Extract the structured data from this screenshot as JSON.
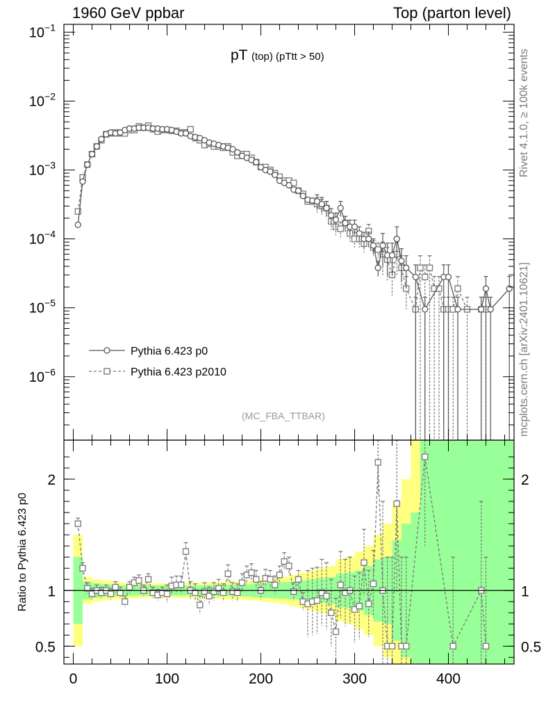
{
  "header": {
    "left": "1960 GeV ppbar",
    "right": "Top (parton level)"
  },
  "side": {
    "rivet": "Rivet 4.1.0, ≥ 100k events",
    "mcplots": "mcplots.cern.ch [arXiv:2401.10621]"
  },
  "plot_title": {
    "main": "pT",
    "sub": "(top) (pTtt > 50)"
  },
  "analysis_label": "(MC_FBA_TTBAR)",
  "colors": {
    "series1": "#555555",
    "series2": "#777777",
    "band_inner": "#99ff99",
    "band_outer": "#ffff80",
    "axis": "#000000"
  },
  "chart_data": [
    {
      "type": "line",
      "panel": "main",
      "title": "pT (top) (pTtt > 50)",
      "xlabel": "",
      "ylabel": "",
      "xlim": [
        -10,
        470
      ],
      "ylim": [
        1.2e-07,
        0.13
      ],
      "yscale": "log",
      "yticks": [
        0.1,
        0.01,
        0.001,
        0.0001,
        1e-05,
        1e-06
      ],
      "ytick_labels": [
        {
          "base": "10",
          "exp": "−1"
        },
        {
          "base": "10",
          "exp": "−2"
        },
        {
          "base": "10",
          "exp": "−3"
        },
        {
          "base": "10",
          "exp": "−4"
        },
        {
          "base": "10",
          "exp": "−5"
        },
        {
          "base": "10",
          "exp": "−6"
        }
      ],
      "legend": [
        "Pythia 6.423 p0",
        "Pythia 6.423 p2010"
      ],
      "legend_position": "bottom-left",
      "series": [
        {
          "name": "Pythia 6.423 p0",
          "style": "solid-circle",
          "x": [
            5,
            10,
            15,
            20,
            25,
            30,
            35,
            40,
            45,
            50,
            55,
            60,
            65,
            70,
            75,
            80,
            85,
            90,
            95,
            100,
            105,
            110,
            115,
            120,
            125,
            130,
            135,
            140,
            145,
            150,
            155,
            160,
            165,
            170,
            175,
            180,
            185,
            190,
            195,
            200,
            205,
            210,
            215,
            220,
            225,
            230,
            235,
            240,
            245,
            250,
            255,
            260,
            265,
            270,
            275,
            280,
            285,
            290,
            295,
            300,
            305,
            310,
            315,
            320,
            325,
            330,
            335,
            340,
            345,
            350,
            355,
            365,
            375,
            395,
            400,
            410,
            435,
            440,
            445,
            465
          ],
          "y": [
            0.00016,
            0.00068,
            0.0012,
            0.0017,
            0.0022,
            0.0028,
            0.0033,
            0.0035,
            0.0034,
            0.0035,
            0.0038,
            0.004,
            0.004,
            0.0041,
            0.0041,
            0.0041,
            0.004,
            0.004,
            0.0039,
            0.0039,
            0.0038,
            0.0036,
            0.0034,
            0.0034,
            0.0031,
            0.003,
            0.0029,
            0.0027,
            0.0025,
            0.0024,
            0.0023,
            0.0022,
            0.0021,
            0.002,
            0.0018,
            0.0016,
            0.0015,
            0.0014,
            0.0013,
            0.0011,
            0.001,
            0.00095,
            0.00085,
            0.0007,
            0.00065,
            0.0006,
            0.00052,
            0.0005,
            0.00042,
            0.00037,
            0.00036,
            0.00035,
            0.00032,
            0.00028,
            0.00022,
            0.00019,
            0.00028,
            0.00017,
            0.00015,
            0.00015,
            0.00012,
            0.0001,
            0.0001,
            8e-05,
            3.8e-05,
            8e-05,
            5.8e-05,
            5.8e-05,
            0.0001,
            4.8e-05,
            3.8e-05,
            2.8e-05,
            9.5e-06,
            2.8e-05,
            2.8e-05,
            9.5e-06,
            9.5e-06,
            1.9e-05,
            9.5e-06,
            1.9e-05
          ]
        },
        {
          "name": "Pythia 6.423 p2010",
          "style": "dashed-square",
          "x": [
            5,
            10,
            15,
            20,
            25,
            30,
            35,
            40,
            45,
            50,
            55,
            60,
            65,
            70,
            75,
            80,
            85,
            90,
            95,
            100,
            105,
            110,
            115,
            120,
            125,
            130,
            135,
            140,
            145,
            150,
            155,
            160,
            165,
            170,
            175,
            180,
            185,
            190,
            195,
            200,
            205,
            210,
            215,
            220,
            225,
            230,
            235,
            240,
            245,
            250,
            255,
            260,
            265,
            270,
            275,
            280,
            285,
            290,
            295,
            300,
            305,
            310,
            315,
            320,
            325,
            330,
            335,
            340,
            345,
            350,
            355,
            365,
            370,
            375,
            380,
            385,
            390,
            395,
            400,
            405,
            410,
            420,
            435,
            440
          ],
          "y": [
            0.00025,
            0.00078,
            0.0012,
            0.0017,
            0.0022,
            0.0027,
            0.0033,
            0.0034,
            0.0035,
            0.0034,
            0.0034,
            0.0038,
            0.0038,
            0.0043,
            0.0041,
            0.0044,
            0.0039,
            0.0036,
            0.0038,
            0.0038,
            0.0037,
            0.0037,
            0.0035,
            0.0035,
            0.0039,
            0.0029,
            0.0027,
            0.0023,
            0.0024,
            0.0022,
            0.0022,
            0.0021,
            0.0022,
            0.0018,
            0.0016,
            0.0017,
            0.0017,
            0.0015,
            0.0013,
            0.0011,
            0.0011,
            0.001,
            0.0009,
            0.0008,
            0.0007,
            0.0007,
            0.00065,
            0.0005,
            0.00045,
            0.00035,
            0.00035,
            0.00032,
            0.0003,
            0.00028,
            0.00018,
            0.00015,
            0.00014,
            0.00017,
            0.00012,
            0.0001,
            0.0001,
            8.5e-05,
            0.00013,
            7.5e-05,
            7e-05,
            6e-05,
            5e-05,
            3e-05,
            6e-05,
            3.8e-05,
            1.9e-05,
            9.5e-06,
            3.8e-05,
            2.8e-05,
            3.8e-05,
            1.9e-05,
            1.9e-05,
            9.5e-06,
            9.5e-06,
            9.5e-06,
            1.9e-05,
            9.5e-06,
            9.5e-06,
            9.5e-06
          ]
        }
      ]
    },
    {
      "type": "line",
      "panel": "ratio",
      "xlabel": "",
      "ylabel": "Ratio to Pythia 6.423 p0",
      "xlim": [
        -10,
        470
      ],
      "ylim": [
        0.34,
        2.35
      ],
      "yticks": [
        0.5,
        1,
        2
      ],
      "ytick_labels": [
        "0.5",
        "1",
        "2"
      ],
      "xticks": [
        0,
        100,
        200,
        300,
        400
      ],
      "xtick_labels": [
        "0",
        "100",
        "200",
        "300",
        "400"
      ],
      "ratio_band": {
        "x_edges": [
          0,
          10,
          20,
          30,
          40,
          50,
          60,
          70,
          80,
          90,
          100,
          110,
          120,
          130,
          140,
          150,
          160,
          170,
          180,
          190,
          200,
          210,
          220,
          230,
          240,
          250,
          260,
          270,
          280,
          290,
          300,
          310,
          320,
          330,
          340,
          350,
          360,
          370,
          380,
          390,
          400,
          410,
          420,
          430,
          440,
          450,
          460,
          470
        ],
        "inner": [
          0.3,
          0.08,
          0.065,
          0.055,
          0.05,
          0.045,
          0.045,
          0.045,
          0.045,
          0.045,
          0.045,
          0.045,
          0.045,
          0.045,
          0.05,
          0.05,
          0.05,
          0.05,
          0.055,
          0.06,
          0.065,
          0.07,
          0.075,
          0.08,
          0.09,
          0.1,
          0.11,
          0.12,
          0.15,
          0.16,
          0.18,
          0.22,
          0.28,
          0.3,
          0.45,
          0.6,
          0.7,
          1.5,
          1.5,
          1.5,
          1.5,
          1.5,
          1.5,
          1.5,
          1.5,
          1.5,
          1.5
        ],
        "outer": [
          0.5,
          0.12,
          0.1,
          0.09,
          0.08,
          0.07,
          0.07,
          0.065,
          0.065,
          0.065,
          0.065,
          0.065,
          0.07,
          0.07,
          0.075,
          0.075,
          0.08,
          0.08,
          0.085,
          0.09,
          0.1,
          0.11,
          0.12,
          0.14,
          0.16,
          0.18,
          0.2,
          0.22,
          0.28,
          0.3,
          0.35,
          0.4,
          0.5,
          0.6,
          0.8,
          1.0,
          1.5,
          1.5,
          1.5,
          1.5,
          1.5,
          1.5,
          1.5,
          1.5,
          1.5,
          1.5,
          1.5
        ]
      },
      "series": [
        {
          "name": "Pythia 6.423 p2010 / Pythia 6.423 p0",
          "style": "dashed-square",
          "x": [
            5,
            10,
            15,
            20,
            25,
            30,
            35,
            40,
            45,
            50,
            55,
            60,
            65,
            70,
            75,
            80,
            85,
            90,
            95,
            100,
            105,
            110,
            115,
            120,
            125,
            130,
            135,
            140,
            145,
            150,
            155,
            160,
            165,
            170,
            175,
            180,
            185,
            190,
            195,
            200,
            205,
            210,
            215,
            220,
            225,
            230,
            235,
            240,
            245,
            250,
            255,
            260,
            265,
            270,
            275,
            280,
            285,
            290,
            295,
            300,
            305,
            310,
            315,
            320,
            325,
            330,
            335,
            340,
            345,
            350,
            355,
            375,
            405,
            435,
            440
          ],
          "y": [
            1.6,
            1.2,
            1.02,
            0.97,
            1.0,
            0.98,
            1.0,
            0.97,
            1.03,
            0.98,
            0.9,
            1.03,
            1.07,
            1.09,
            1.0,
            1.1,
            0.98,
            0.96,
            0.98,
            0.97,
            1.04,
            1.05,
            1.05,
            1.35,
            1.0,
            0.98,
            0.87,
            0.99,
            0.95,
            0.99,
            1.02,
            0.98,
            1.15,
            0.99,
            0.98,
            1.07,
            1.14,
            1.16,
            1.1,
            1.0,
            1.11,
            1.1,
            1.05,
            1.14,
            1.26,
            1.22,
            0.99,
            1.1,
            0.9,
            0.88,
            0.9,
            0.91,
            0.98,
            0.95,
            0.8,
            0.63,
            1.05,
            0.98,
            1.0,
            0.83,
            0.86,
            1.25,
            0.88,
            1.06,
            2.15,
            1.0,
            0.5,
            0.5,
            1.78,
            0.5,
            0.5,
            2.2,
            0.5,
            1.0,
            0.5
          ]
        }
      ]
    }
  ]
}
